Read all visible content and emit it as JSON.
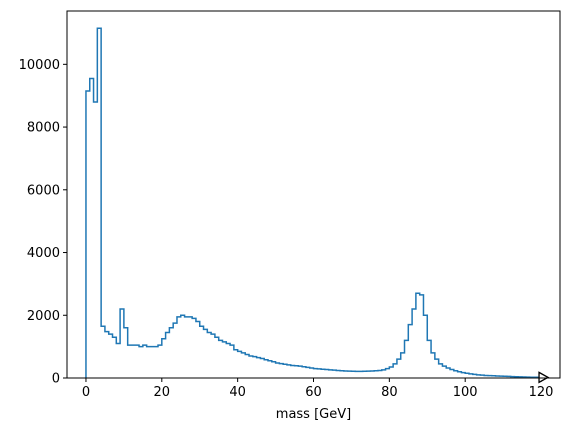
{
  "chart_data": {
    "type": "histogram-step",
    "title": "",
    "xlabel": "mass [GeV]",
    "ylabel": "",
    "xlim": [
      -5,
      125
    ],
    "ylim": [
      0,
      11700
    ],
    "xticks": [
      0,
      20,
      40,
      60,
      80,
      100,
      120
    ],
    "yticks": [
      0,
      2000,
      4000,
      6000,
      8000,
      10000
    ],
    "grid": false,
    "line_color": "#1f77b4",
    "bin_width": 1,
    "series": [
      {
        "x_start": 0,
        "values": [
          9150,
          9550,
          8800,
          11150,
          1650,
          1480,
          1400,
          1300,
          1100,
          2200,
          1600,
          1050,
          1050,
          1050,
          1000,
          1050,
          1000,
          1000,
          1000,
          1050,
          1250,
          1450,
          1600,
          1750,
          1950,
          2000,
          1950,
          1950,
          1900,
          1800,
          1650,
          1550,
          1450,
          1400,
          1300,
          1200,
          1150,
          1100,
          1050,
          900,
          850,
          800,
          750,
          700,
          680,
          650,
          620,
          580,
          550,
          520,
          480,
          460,
          440,
          420,
          400,
          390,
          380,
          360,
          340,
          320,
          300,
          290,
          280,
          270,
          260,
          250,
          240,
          230,
          225,
          220,
          215,
          210,
          210,
          215,
          220,
          225,
          230,
          240,
          260,
          300,
          350,
          450,
          600,
          800,
          1200,
          1700,
          2200,
          2700,
          2650,
          2000,
          1200,
          800,
          600,
          450,
          380,
          320,
          270,
          230,
          200,
          170,
          150,
          130,
          115,
          100,
          90,
          80,
          75,
          70,
          65,
          60,
          55,
          50,
          45,
          40,
          35,
          30,
          27,
          24,
          22,
          20
        ]
      }
    ],
    "overflow_marker": "right-triangle"
  }
}
